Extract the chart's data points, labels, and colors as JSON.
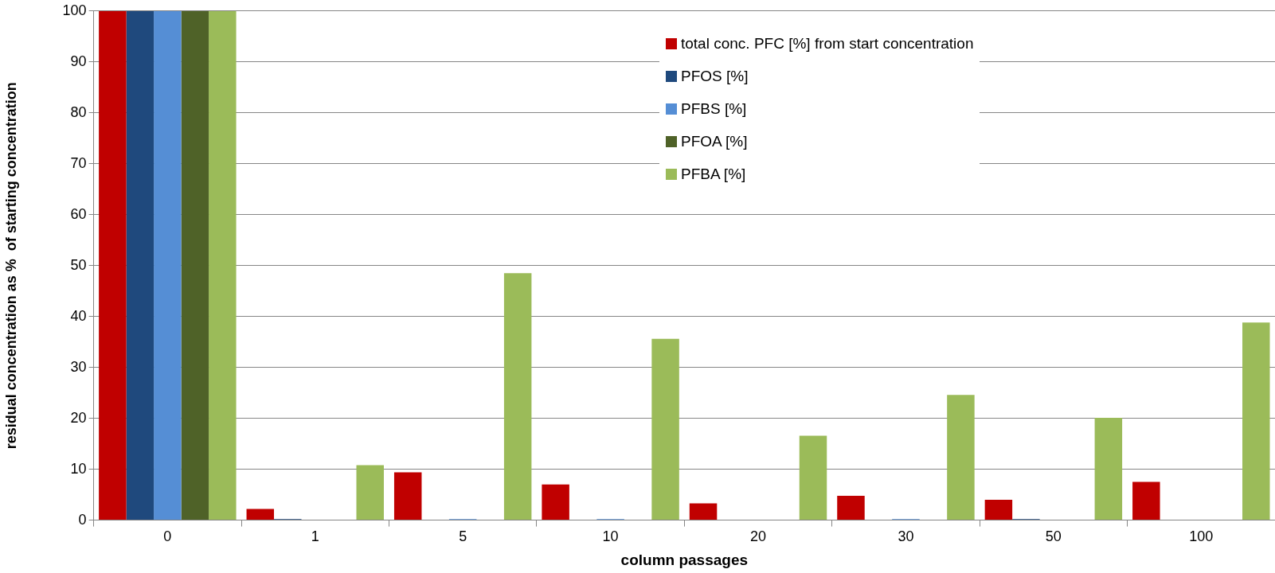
{
  "chart_data": {
    "type": "bar",
    "xlabel": "column passages",
    "ylabel": "residual concentration as %  of starting concentration",
    "categories": [
      "0",
      "1",
      "5",
      "10",
      "20",
      "30",
      "50",
      "100"
    ],
    "series": [
      {
        "name": "total conc. PFC [%] from start concentration",
        "color": "#c00000",
        "values": [
          100,
          2.2,
          9.4,
          7.0,
          3.3,
          4.8,
          4.0,
          7.5
        ]
      },
      {
        "name": "PFOS [%]",
        "color": "#1f497d",
        "values": [
          100,
          0.2,
          0,
          0,
          0,
          0,
          0.2,
          0
        ]
      },
      {
        "name": "PFBS [%]",
        "color": "#558ed5",
        "values": [
          100,
          0,
          0.2,
          0.2,
          0,
          0.2,
          0,
          0
        ]
      },
      {
        "name": "PFOA [%]",
        "color": "#4f6228",
        "values": [
          100,
          0,
          0,
          0,
          0,
          0,
          0,
          0
        ]
      },
      {
        "name": "PFBA [%]",
        "color": "#9bbb59",
        "values": [
          100,
          10.8,
          48.5,
          35.6,
          16.6,
          24.6,
          20.1,
          38.8
        ]
      }
    ],
    "ylim": [
      0,
      100
    ],
    "yticks": [
      0,
      10,
      20,
      30,
      40,
      50,
      60,
      70,
      80,
      90,
      100
    ],
    "grid": "y",
    "legend": "top right"
  }
}
